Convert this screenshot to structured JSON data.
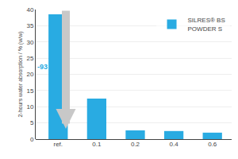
{
  "chart_data": {
    "type": "bar",
    "categories": [
      "ref.",
      "0.1",
      "0.2",
      "0.4",
      "0.6"
    ],
    "series": [
      {
        "name": "SILRES® BS\nPOWDER S",
        "color": "#29abe2",
        "values": [
          38.5,
          12.5,
          2.7,
          2.5,
          2.0
        ]
      }
    ],
    "ylabel": "2-hours water absorption / % (w/w)",
    "ylim": [
      0,
      40
    ],
    "yticks": [
      0,
      5,
      10,
      15,
      20,
      25,
      30,
      35,
      40
    ],
    "grid": true,
    "legend": "upper right",
    "annotations": [
      {
        "text": "-93 %",
        "x": "0.2",
        "y": 20.5
      }
    ]
  }
}
